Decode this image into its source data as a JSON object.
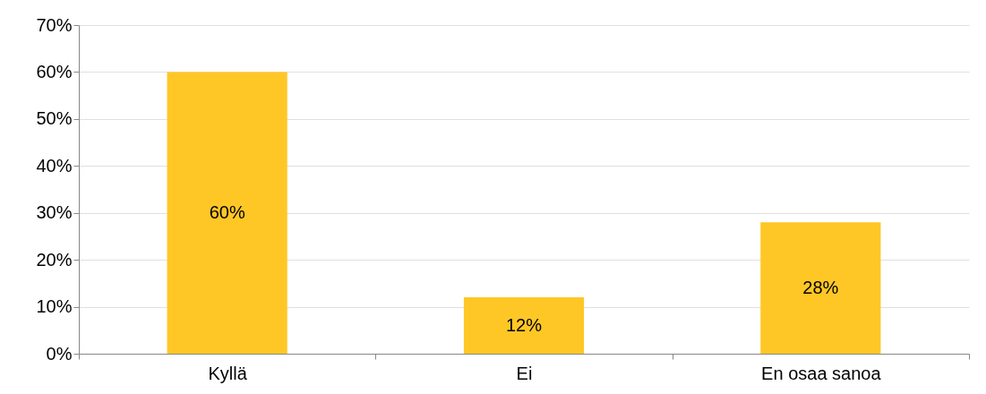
{
  "chart_data": {
    "type": "bar",
    "categories": [
      "Kyllä",
      "Ei",
      "En osaa sanoa"
    ],
    "values": [
      60,
      12,
      28
    ],
    "color": "#ffc726",
    "value_labels": [
      "60%",
      "12%",
      "28%"
    ],
    "ylim": [
      0,
      70
    ],
    "yticks": [
      {
        "value": 0,
        "label": "0%"
      },
      {
        "value": 10,
        "label": "10%"
      },
      {
        "value": 20,
        "label": "20%"
      },
      {
        "value": 30,
        "label": "30%"
      },
      {
        "value": 40,
        "label": "40%"
      },
      {
        "value": 50,
        "label": "50%"
      },
      {
        "value": 60,
        "label": "60%"
      },
      {
        "value": 70,
        "label": "70%"
      }
    ],
    "grid": "y"
  }
}
